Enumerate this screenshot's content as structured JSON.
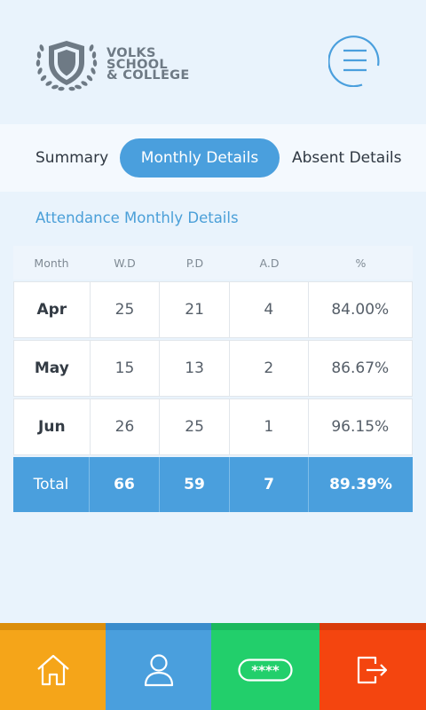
{
  "brand": {
    "line1": "VOLKS",
    "line2": "SCHOOL",
    "line3": "& COLLEGE",
    "logo_icon": "shield-laurel-icon"
  },
  "header": {
    "menu_icon": "hamburger-menu-icon"
  },
  "tabs": [
    {
      "label": "Summary",
      "active": false
    },
    {
      "label": "Monthly Details",
      "active": true
    },
    {
      "label": "Absent Details",
      "active": false
    }
  ],
  "section_title": "Attendance Monthly Details",
  "table": {
    "headers": [
      "Month",
      "W.D",
      "P.D",
      "A.D",
      "%"
    ],
    "rows": [
      {
        "month": "Apr",
        "wd": "25",
        "pd": "21",
        "ad": "4",
        "pct": "84.00%"
      },
      {
        "month": "May",
        "wd": "15",
        "pd": "13",
        "ad": "2",
        "pct": "86.67%"
      },
      {
        "month": "Jun",
        "wd": "26",
        "pd": "25",
        "ad": "1",
        "pct": "96.15%"
      }
    ],
    "total": {
      "label": "Total",
      "wd": "66",
      "pd": "59",
      "ad": "7",
      "pct": "89.39%"
    }
  },
  "bottom_nav": [
    {
      "icon": "home-icon",
      "color": "#f5a519"
    },
    {
      "icon": "user-profile-icon",
      "color": "#4a9fdd"
    },
    {
      "icon": "password-icon",
      "color": "#22cf6b"
    },
    {
      "icon": "logout-icon",
      "color": "#f4450f"
    }
  ],
  "colors": {
    "accent": "#4a9fdd",
    "background": "#e9f3fc"
  }
}
